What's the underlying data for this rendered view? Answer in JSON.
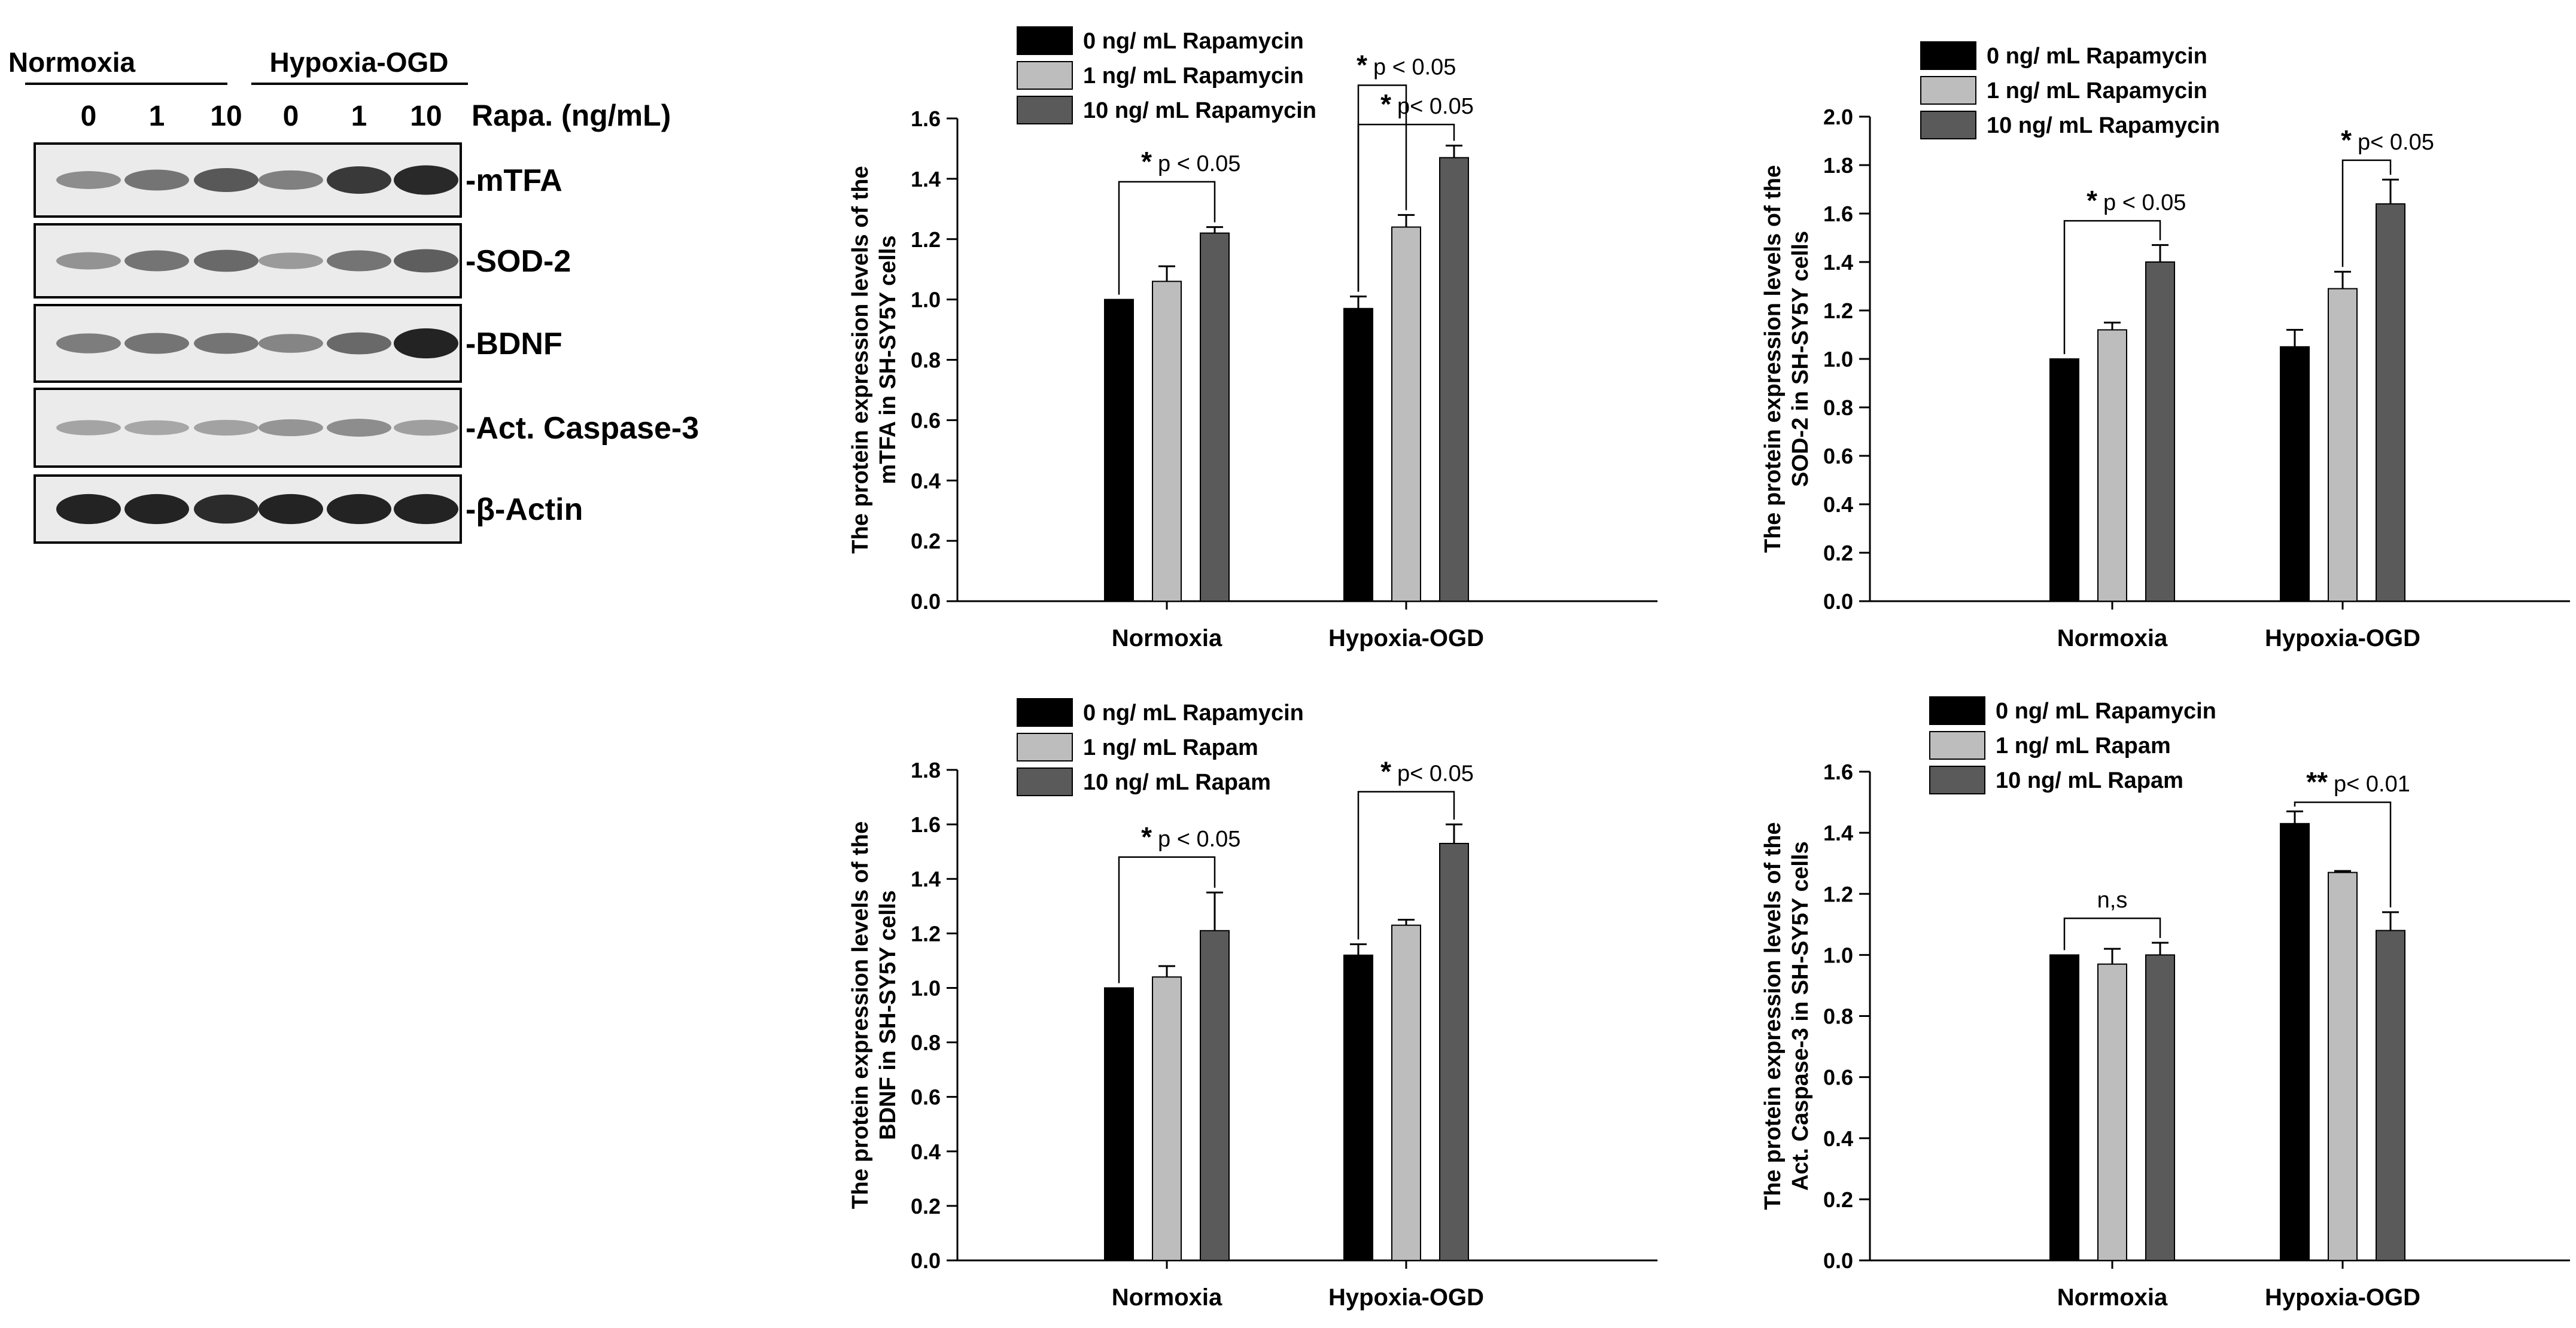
{
  "figure": {
    "colors": {
      "black": "#000000",
      "bar0": "#000000",
      "bar1": "#bdbdbd",
      "bar2": "#5a5a5a",
      "axis": "#000000",
      "blot_bg": "#ebebeb",
      "band": "#1a1a1a"
    }
  },
  "blot": {
    "group_labels": [
      "Normoxia",
      "Hypoxia-OGD"
    ],
    "dose_labels": [
      "0",
      "1",
      "10",
      "0",
      "1",
      "10"
    ],
    "dose_unit_label": "Rapa. (ng/mL)",
    "rows": [
      {
        "label": "-mTFA",
        "intensity": [
          0.35,
          0.5,
          0.65,
          0.42,
          0.82,
          0.92
        ]
      },
      {
        "label": "-SOD-2",
        "intensity": [
          0.32,
          0.5,
          0.55,
          0.28,
          0.5,
          0.62
        ]
      },
      {
        "label": "-BDNF",
        "intensity": [
          0.45,
          0.5,
          0.5,
          0.4,
          0.55,
          0.95
        ]
      },
      {
        "label": "-Act. Caspase-3",
        "intensity": [
          0.22,
          0.2,
          0.24,
          0.3,
          0.35,
          0.25
        ]
      },
      {
        "label": "-β-Actin",
        "intensity": [
          0.95,
          0.95,
          0.9,
          0.95,
          0.95,
          0.95
        ]
      }
    ]
  },
  "chart_data": [
    {
      "type": "bar",
      "title": "",
      "xlabel": "",
      "ylabel": "The protein expression levels of the mTFA in SH-SY5Y cells",
      "ylabel_lines": [
        "The protein expression levels of the",
        "mTFA in SH-SY5Y cells"
      ],
      "categories": [
        "Normoxia",
        "Hypoxia-OGD"
      ],
      "ylim": [
        0,
        1.6
      ],
      "yticks": [
        "0.0",
        "0.2",
        "0.4",
        "0.6",
        "0.8",
        "1.0",
        "1.2",
        "1.4",
        "1.6"
      ],
      "ytick_values": [
        0,
        0.2,
        0.4,
        0.6,
        0.8,
        1.0,
        1.2,
        1.4,
        1.6
      ],
      "series": [
        {
          "name": "0 ng/ mL Rapamycin",
          "values": [
            1.0,
            0.97
          ],
          "errors": [
            0,
            0.04
          ]
        },
        {
          "name": "1 ng/ mL Rapamycin",
          "values": [
            1.06,
            1.24
          ],
          "errors": [
            0.05,
            0.04
          ]
        },
        {
          "name": "10 ng/ mL Rapamycin",
          "values": [
            1.22,
            1.47
          ],
          "errors": [
            0.02,
            0.04
          ]
        }
      ],
      "annotations": [
        {
          "star": "*",
          "text": "p < 0.05",
          "from": [
            0,
            0
          ],
          "to": [
            0,
            2
          ],
          "y": 1.39
        },
        {
          "star": "*",
          "text": "p < 0.05",
          "from": [
            1,
            0
          ],
          "to": [
            1,
            1
          ],
          "y": 1.71
        },
        {
          "star": "*",
          "text": "p< 0.05",
          "from": [
            1,
            0
          ],
          "to": [
            1,
            2
          ],
          "y": 1.58
        }
      ]
    },
    {
      "type": "bar",
      "title": "",
      "xlabel": "",
      "ylabel": "The protein expression levels of the SOD-2 in SH-SY5Y cells",
      "ylabel_lines": [
        "The protein expression levels of the",
        "SOD-2 in SH-SY5Y cells"
      ],
      "categories": [
        "Normoxia",
        "Hypoxia-OGD"
      ],
      "ylim": [
        0,
        2.0
      ],
      "yticks": [
        "0.0",
        "0.2",
        "0.4",
        "0.6",
        "0.8",
        "1.0",
        "1.2",
        "1.4",
        "1.6",
        "1.8",
        "2.0"
      ],
      "ytick_values": [
        0,
        0.2,
        0.4,
        0.6,
        0.8,
        1.0,
        1.2,
        1.4,
        1.6,
        1.8,
        2.0
      ],
      "series": [
        {
          "name": "0 ng/ mL Rapamycin",
          "values": [
            1.0,
            1.05
          ],
          "errors": [
            0,
            0.07
          ]
        },
        {
          "name": "1 ng/ mL Rapamycin",
          "values": [
            1.12,
            1.29
          ],
          "errors": [
            0.03,
            0.07
          ]
        },
        {
          "name": "10 ng/ mL Rapamycin",
          "values": [
            1.4,
            1.64
          ],
          "errors": [
            0.07,
            0.1
          ]
        }
      ],
      "annotations": [
        {
          "star": "*",
          "text": "p < 0.05",
          "from": [
            0,
            0
          ],
          "to": [
            0,
            2
          ],
          "y": 1.57
        },
        {
          "star": "*",
          "text": "p< 0.05",
          "from": [
            1,
            1
          ],
          "to": [
            1,
            2
          ],
          "y": 1.82
        }
      ]
    },
    {
      "type": "bar",
      "title": "",
      "xlabel": "",
      "ylabel": "The protein expression levels of the BDNF in SH-SY5Y cells",
      "ylabel_lines": [
        "The protein expression levels of the",
        "BDNF in SH-SY5Y cells"
      ],
      "categories": [
        "Normoxia",
        "Hypoxia-OGD"
      ],
      "ylim": [
        0,
        1.8
      ],
      "yticks": [
        "0.0",
        "0.2",
        "0.4",
        "0.6",
        "0.8",
        "1.0",
        "1.2",
        "1.4",
        "1.6",
        "1.8"
      ],
      "ytick_values": [
        0,
        0.2,
        0.4,
        0.6,
        0.8,
        1.0,
        1.2,
        1.4,
        1.6,
        1.8
      ],
      "series": [
        {
          "name": "0 ng/ mL Rapamycin",
          "values": [
            1.0,
            1.12
          ],
          "errors": [
            0,
            0.04
          ]
        },
        {
          "name": "1 ng/ mL Rapam",
          "values": [
            1.04,
            1.23
          ],
          "errors": [
            0.04,
            0.02
          ]
        },
        {
          "name": "10 ng/ mL Rapam",
          "values": [
            1.21,
            1.53
          ],
          "errors": [
            0.14,
            0.07
          ]
        }
      ],
      "annotations": [
        {
          "star": "*",
          "text": "p < 0.05",
          "from": [
            0,
            0
          ],
          "to": [
            0,
            2
          ],
          "y": 1.48
        },
        {
          "star": "*",
          "text": "p< 0.05",
          "from": [
            1,
            0
          ],
          "to": [
            1,
            2
          ],
          "y": 1.72
        }
      ]
    },
    {
      "type": "bar",
      "title": "",
      "xlabel": "",
      "ylabel": "The protein expression levels of the Act. Caspase-3 in SH-SY5Y cells",
      "ylabel_lines": [
        "The protein expression levels of the",
        "Act. Caspase-3 in SH-SY5Y cells"
      ],
      "categories": [
        "Normoxia",
        "Hypoxia-OGD"
      ],
      "ylim": [
        0,
        1.6
      ],
      "yticks": [
        "0.0",
        "0.2",
        "0.4",
        "0.6",
        "0.8",
        "1.0",
        "1.2",
        "1.4",
        "1.6"
      ],
      "ytick_values": [
        0,
        0.2,
        0.4,
        0.6,
        0.8,
        1.0,
        1.2,
        1.4,
        1.6
      ],
      "series": [
        {
          "name": "0 ng/ mL Rapamycin",
          "values": [
            1.0,
            1.43
          ],
          "errors": [
            0,
            0.04
          ]
        },
        {
          "name": "1 ng/ mL Rapam",
          "values": [
            0.97,
            1.27
          ],
          "errors": [
            0.05,
            0.005
          ]
        },
        {
          "name": "10 ng/ mL Rapam",
          "values": [
            1.0,
            1.08
          ],
          "errors": [
            0.04,
            0.06
          ]
        }
      ],
      "annotations": [
        {
          "star": "",
          "text": "n,s",
          "from": [
            0,
            0
          ],
          "to": [
            0,
            2
          ],
          "y": 1.12
        },
        {
          "star": "**",
          "text": "p< 0.01",
          "from": [
            1,
            0
          ],
          "to": [
            1,
            2
          ],
          "y": 1.5
        }
      ]
    }
  ]
}
